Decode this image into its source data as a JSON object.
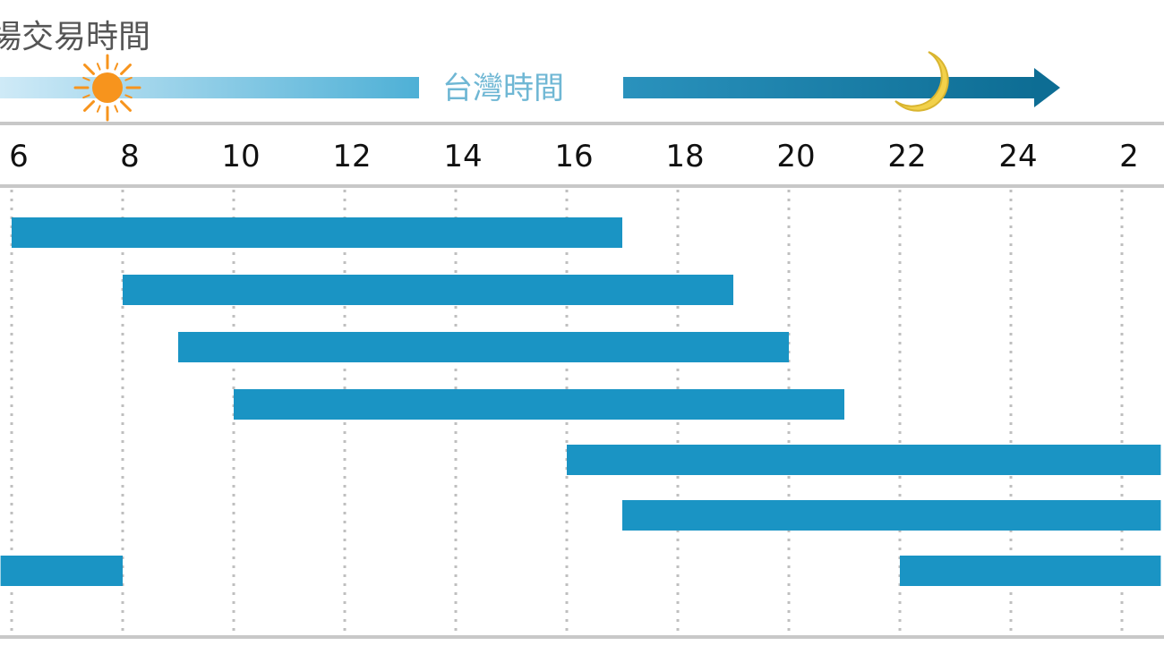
{
  "header": {
    "title": "場交易時間",
    "timezone_label": "台灣時間",
    "sun_icon": "sun-icon",
    "moon_icon": "crescent-moon-icon",
    "arrow_icon": "arrow-right-icon"
  },
  "colors": {
    "bar": "#1a94c4",
    "grid": "#bfbfbf",
    "axis_line": "#c8c8c8",
    "gradient_light": "#cfeaf7",
    "gradient_dark": "#0d6d94",
    "sun": "#f7941d",
    "moon": "#f2d14a"
  },
  "chart_data": {
    "type": "bar",
    "orientation": "horizontal",
    "xlabel": "台灣時間",
    "ylabel": "",
    "tick_labels": [
      "6",
      "8",
      "10",
      "12",
      "14",
      "16",
      "18",
      "20",
      "22",
      "24",
      "2"
    ],
    "tick_hours": [
      6,
      8,
      10,
      12,
      14,
      16,
      18,
      20,
      22,
      24,
      26
    ],
    "xlim": [
      5.8,
      26.7
    ],
    "grid": true,
    "legend": "none",
    "series": [
      {
        "values": [
          {
            "start": 6,
            "end": 17
          },
          {
            "start": 8,
            "end": 19
          },
          {
            "start": 9,
            "end": 20
          },
          {
            "start": 10,
            "end": 21
          },
          {
            "start": 16,
            "end": 26.7
          },
          {
            "start": 17,
            "end": 26.7
          },
          {
            "start": 5.8,
            "end": 8
          },
          {
            "start": 22,
            "end": 26.7
          }
        ]
      }
    ],
    "rows": 7,
    "bar_rows": [
      0,
      1,
      2,
      3,
      4,
      5,
      6,
      6
    ]
  }
}
